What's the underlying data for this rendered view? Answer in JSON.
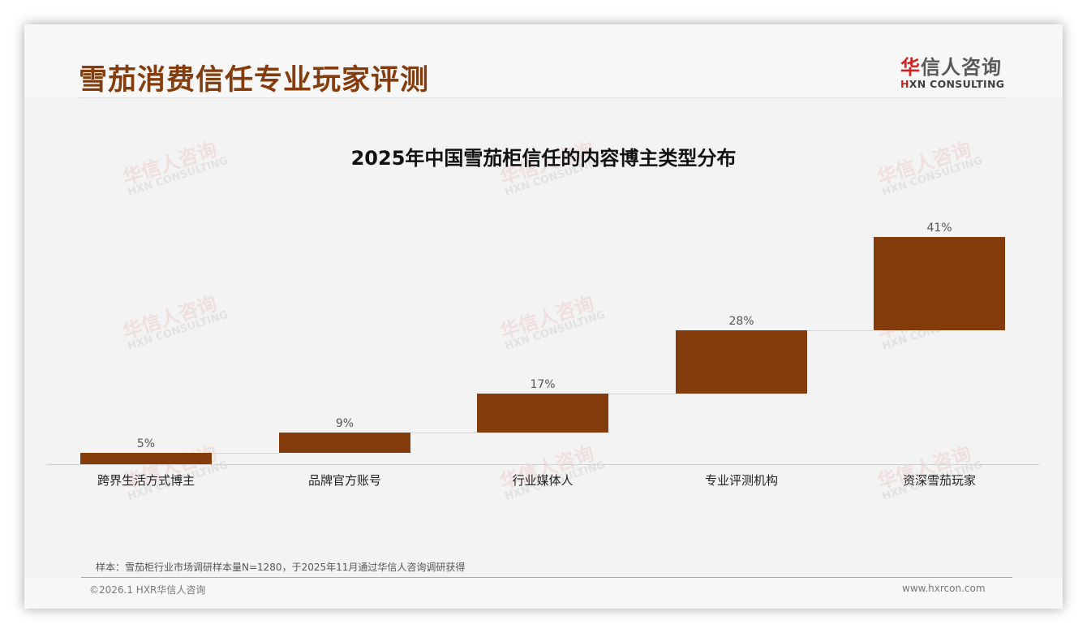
{
  "header": {
    "title": "雪茄消费信任专业玩家评测",
    "logo_cn_first": "华",
    "logo_cn_rest": "信人咨询",
    "logo_en_first": "H",
    "logo_en_rest": "XN CONSULTING"
  },
  "watermark": {
    "cn": "华信人咨询",
    "en": "HXN CONSULTING"
  },
  "chart_data": {
    "type": "bar",
    "subtype": "waterfall",
    "title": "2025年中国雪茄柜信任的内容博主类型分布",
    "categories": [
      "跨界生活方式博主",
      "品牌官方账号",
      "行业媒体人",
      "专业评测机构",
      "资深雪茄玩家"
    ],
    "values": [
      5,
      9,
      17,
      28,
      41
    ],
    "value_labels": [
      "5%",
      "9%",
      "17%",
      "28%",
      "41%"
    ],
    "xlabel": "",
    "ylabel": "",
    "ylim": [
      0,
      100
    ],
    "grid": false,
    "legend": false,
    "bar_color": "#843c0c"
  },
  "footer": {
    "note": "样本：雪茄柜行业市场调研样本量N=1280，于2025年11月通过华信人咨询调研获得",
    "copyright": "©2026.1 HXR华信人咨询",
    "site": "www.hxrcon.com"
  },
  "colors": {
    "accent": "#843c0c",
    "logo_red": "#d02020"
  }
}
